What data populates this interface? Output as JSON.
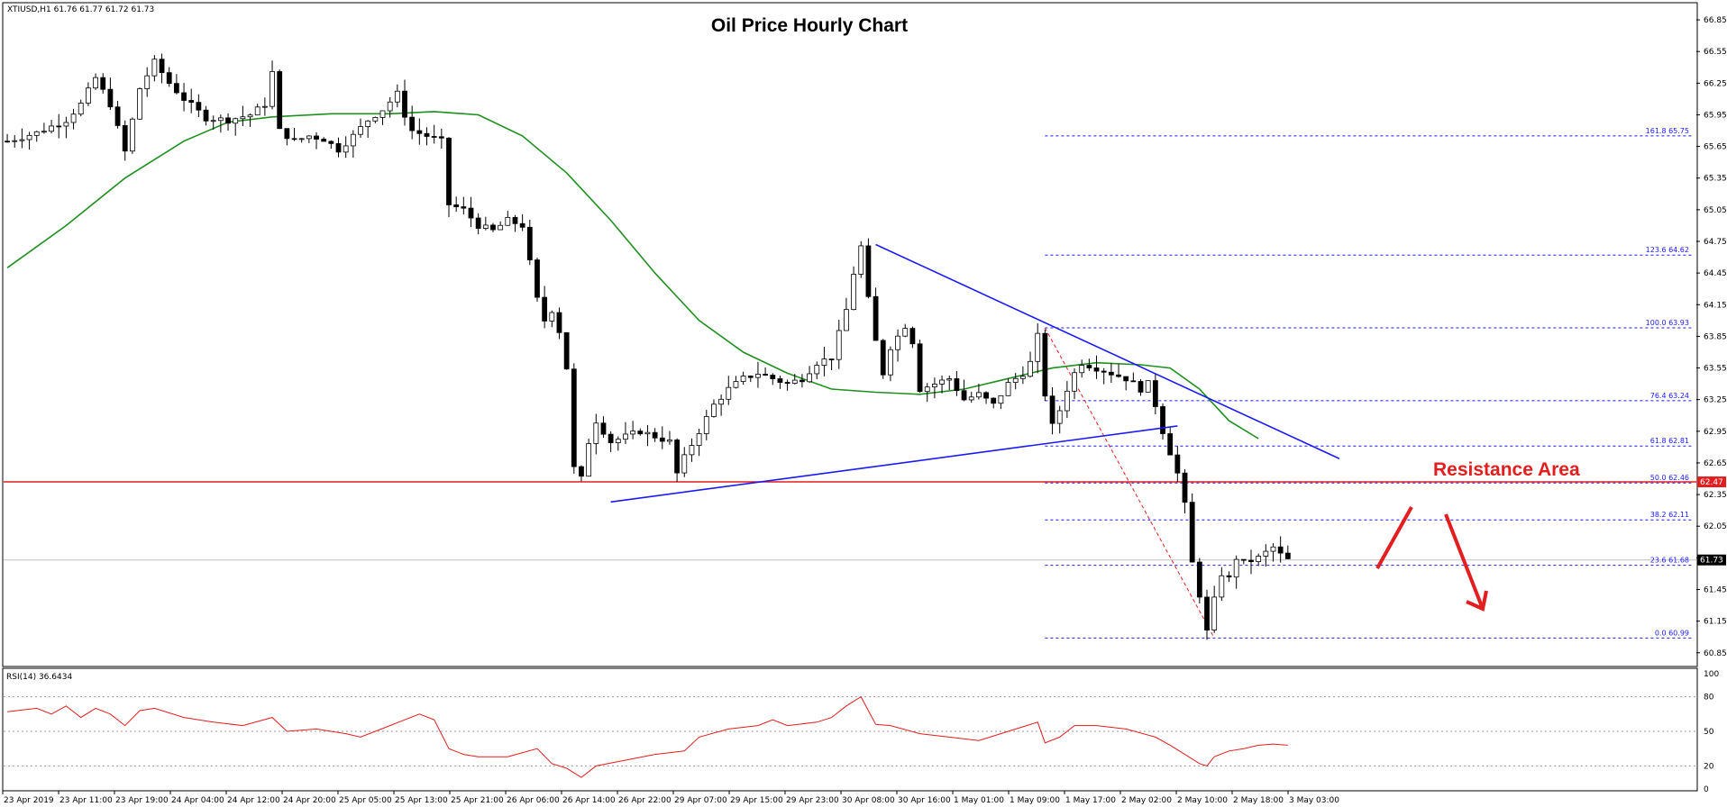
{
  "header": {
    "symbol_info": "XTIUSD,H1  61.76 61.77 61.72 61.73",
    "rsi_info": "RSI(14) 36.6434"
  },
  "chart_data": {
    "type": "candlestick",
    "title": "Oil Price Hourly Chart",
    "annotation": "Resistance Area",
    "ylim": [
      60.72,
      66.97
    ],
    "y_ticks": [
      "66.85",
      "66.55",
      "66.25",
      "65.95",
      "65.65",
      "65.35",
      "65.05",
      "64.75",
      "64.45",
      "64.15",
      "63.85",
      "63.55",
      "63.25",
      "62.95",
      "62.65",
      "62.35",
      "62.05",
      "61.75",
      "61.45",
      "61.15",
      "60.85"
    ],
    "x_ticks": [
      "23 Apr 2019",
      "23 Apr 11:00",
      "23 Apr 19:00",
      "24 Apr 04:00",
      "24 Apr 12:00",
      "24 Apr 20:00",
      "25 Apr 05:00",
      "25 Apr 13:00",
      "25 Apr 21:00",
      "26 Apr 06:00",
      "26 Apr 14:00",
      "26 Apr 22:00",
      "29 Apr 07:00",
      "29 Apr 15:00",
      "29 Apr 23:00",
      "30 Apr 08:00",
      "30 Apr 16:00",
      "1 May 01:00",
      "1 May 09:00",
      "1 May 17:00",
      "2 May 02:00",
      "2 May 10:00",
      "2 May 18:00",
      "3 May 03:00"
    ],
    "current_price": "61.73",
    "resistance_price": "62.47",
    "fib_levels": [
      {
        "ratio": "161.8",
        "price": 65.75,
        "label": "161.8 65.75"
      },
      {
        "ratio": "123.6",
        "price": 64.62,
        "label": "123.6 64.62"
      },
      {
        "ratio": "100.0",
        "price": 63.93,
        "label": "100.0 63.93"
      },
      {
        "ratio": "76.4",
        "price": 63.24,
        "label": "76.4 63.24"
      },
      {
        "ratio": "61.8",
        "price": 62.81,
        "label": "61.8 62.81"
      },
      {
        "ratio": "50.0",
        "price": 62.46,
        "label": "50.0 62.46"
      },
      {
        "ratio": "38.2",
        "price": 62.11,
        "label": "38.2 62.11"
      },
      {
        "ratio": "23.6",
        "price": 61.68,
        "label": "23.6 61.68"
      },
      {
        "ratio": "0.0",
        "price": 60.99,
        "label": "0.0 60.99"
      }
    ],
    "close_path": [
      [
        0,
        65.7
      ],
      [
        4,
        65.78
      ],
      [
        8,
        65.9
      ],
      [
        10,
        66.05
      ],
      [
        12,
        66.3
      ],
      [
        14,
        66.05
      ],
      [
        16,
        65.6
      ],
      [
        18,
        66.2
      ],
      [
        20,
        66.45
      ],
      [
        22,
        66.25
      ],
      [
        24,
        66.1
      ],
      [
        27,
        65.92
      ],
      [
        30,
        65.9
      ],
      [
        33,
        65.95
      ],
      [
        35,
        66.05
      ],
      [
        36,
        66.35
      ],
      [
        37,
        65.8
      ],
      [
        39,
        65.7
      ],
      [
        41,
        65.75
      ],
      [
        43,
        65.72
      ],
      [
        45,
        65.62
      ],
      [
        47,
        65.75
      ],
      [
        49,
        65.9
      ],
      [
        51,
        66.0
      ],
      [
        53,
        66.15
      ],
      [
        54,
        65.95
      ],
      [
        55,
        65.8
      ],
      [
        57,
        65.75
      ],
      [
        59,
        65.7
      ],
      [
        60,
        65.1
      ],
      [
        62,
        65.05
      ],
      [
        64,
        64.9
      ],
      [
        66,
        64.85
      ],
      [
        68,
        64.95
      ],
      [
        70,
        64.9
      ],
      [
        71,
        64.55
      ],
      [
        72,
        64.2
      ],
      [
        73,
        64.0
      ],
      [
        74,
        64.1
      ],
      [
        75,
        63.9
      ],
      [
        76,
        63.55
      ],
      [
        77,
        62.6
      ],
      [
        78,
        62.5
      ],
      [
        79,
        62.85
      ],
      [
        80,
        63.05
      ],
      [
        82,
        62.85
      ],
      [
        84,
        62.9
      ],
      [
        86,
        62.95
      ],
      [
        88,
        62.9
      ],
      [
        90,
        62.85
      ],
      [
        91,
        62.55
      ],
      [
        92,
        62.7
      ],
      [
        94,
        62.95
      ],
      [
        96,
        63.2
      ],
      [
        98,
        63.35
      ],
      [
        100,
        63.45
      ],
      [
        102,
        63.5
      ],
      [
        104,
        63.45
      ],
      [
        106,
        63.4
      ],
      [
        108,
        63.45
      ],
      [
        110,
        63.6
      ],
      [
        112,
        63.65
      ],
      [
        114,
        64.1
      ],
      [
        115,
        64.45
      ],
      [
        116,
        64.7
      ],
      [
        117,
        64.2
      ],
      [
        118,
        63.8
      ],
      [
        119,
        63.5
      ],
      [
        120,
        63.75
      ],
      [
        122,
        63.95
      ],
      [
        123,
        63.8
      ],
      [
        124,
        63.35
      ],
      [
        126,
        63.4
      ],
      [
        128,
        63.45
      ],
      [
        130,
        63.25
      ],
      [
        132,
        63.3
      ],
      [
        134,
        63.2
      ],
      [
        136,
        63.4
      ],
      [
        138,
        63.5
      ],
      [
        139,
        63.6
      ],
      [
        140,
        63.85
      ],
      [
        141,
        63.3
      ],
      [
        142,
        63.0
      ],
      [
        143,
        63.15
      ],
      [
        144,
        63.35
      ],
      [
        145,
        63.5
      ],
      [
        146,
        63.6
      ],
      [
        148,
        63.55
      ],
      [
        150,
        63.5
      ],
      [
        152,
        63.45
      ],
      [
        154,
        63.35
      ],
      [
        155,
        63.4
      ],
      [
        156,
        63.2
      ],
      [
        157,
        62.95
      ],
      [
        158,
        62.75
      ],
      [
        159,
        62.55
      ],
      [
        160,
        62.25
      ],
      [
        161,
        61.7
      ],
      [
        162,
        61.4
      ],
      [
        163,
        61.05
      ],
      [
        164,
        61.35
      ],
      [
        165,
        61.6
      ],
      [
        166,
        61.55
      ],
      [
        167,
        61.75
      ],
      [
        168,
        61.7
      ],
      [
        170,
        61.75
      ],
      [
        172,
        61.85
      ],
      [
        173,
        61.78
      ],
      [
        174,
        61.73
      ]
    ],
    "ma_path": [
      [
        0,
        64.5
      ],
      [
        8,
        64.9
      ],
      [
        16,
        65.35
      ],
      [
        24,
        65.7
      ],
      [
        30,
        65.88
      ],
      [
        36,
        65.93
      ],
      [
        44,
        65.96
      ],
      [
        52,
        65.96
      ],
      [
        58,
        65.98
      ],
      [
        64,
        65.95
      ],
      [
        70,
        65.75
      ],
      [
        76,
        65.4
      ],
      [
        82,
        64.95
      ],
      [
        88,
        64.45
      ],
      [
        94,
        64.0
      ],
      [
        100,
        63.7
      ],
      [
        106,
        63.5
      ],
      [
        112,
        63.35
      ],
      [
        118,
        63.32
      ],
      [
        124,
        63.3
      ],
      [
        130,
        63.35
      ],
      [
        136,
        63.45
      ],
      [
        142,
        63.55
      ],
      [
        148,
        63.6
      ],
      [
        154,
        63.58
      ],
      [
        158,
        63.55
      ],
      [
        162,
        63.35
      ],
      [
        166,
        63.05
      ],
      [
        170,
        62.88
      ]
    ],
    "support_line": [
      [
        82,
        62.28
      ],
      [
        159,
        63.0
      ]
    ],
    "resistance_line": [
      [
        118,
        64.72
      ],
      [
        181,
        62.69
      ]
    ],
    "fib_swing": [
      [
        141,
        63.93
      ],
      [
        164,
        60.99
      ]
    ],
    "rsi": {
      "ylim": [
        0,
        100
      ],
      "ticks": [
        "100",
        "80",
        "50",
        "20",
        "0"
      ],
      "values": [
        [
          0,
          67
        ],
        [
          4,
          70
        ],
        [
          6,
          65
        ],
        [
          8,
          72
        ],
        [
          10,
          62
        ],
        [
          12,
          70
        ],
        [
          14,
          65
        ],
        [
          16,
          55
        ],
        [
          18,
          68
        ],
        [
          20,
          70
        ],
        [
          24,
          62
        ],
        [
          28,
          58
        ],
        [
          32,
          55
        ],
        [
          36,
          62
        ],
        [
          38,
          50
        ],
        [
          42,
          52
        ],
        [
          46,
          48
        ],
        [
          48,
          45
        ],
        [
          52,
          55
        ],
        [
          54,
          60
        ],
        [
          56,
          65
        ],
        [
          58,
          60
        ],
        [
          60,
          35
        ],
        [
          62,
          30
        ],
        [
          64,
          28
        ],
        [
          68,
          28
        ],
        [
          72,
          35
        ],
        [
          74,
          22
        ],
        [
          76,
          18
        ],
        [
          78,
          10
        ],
        [
          80,
          20
        ],
        [
          84,
          25
        ],
        [
          88,
          30
        ],
        [
          92,
          33
        ],
        [
          94,
          45
        ],
        [
          98,
          52
        ],
        [
          102,
          55
        ],
        [
          104,
          60
        ],
        [
          106,
          55
        ],
        [
          110,
          58
        ],
        [
          112,
          62
        ],
        [
          114,
          72
        ],
        [
          116,
          80
        ],
        [
          118,
          56
        ],
        [
          120,
          55
        ],
        [
          124,
          48
        ],
        [
          128,
          45
        ],
        [
          132,
          42
        ],
        [
          136,
          50
        ],
        [
          140,
          58
        ],
        [
          141,
          40
        ],
        [
          143,
          45
        ],
        [
          145,
          55
        ],
        [
          148,
          55
        ],
        [
          152,
          52
        ],
        [
          156,
          45
        ],
        [
          158,
          38
        ],
        [
          160,
          30
        ],
        [
          162,
          22
        ],
        [
          163,
          20
        ],
        [
          164,
          28
        ],
        [
          166,
          33
        ],
        [
          168,
          35
        ],
        [
          170,
          38
        ],
        [
          172,
          39
        ],
        [
          174,
          38
        ]
      ]
    }
  }
}
